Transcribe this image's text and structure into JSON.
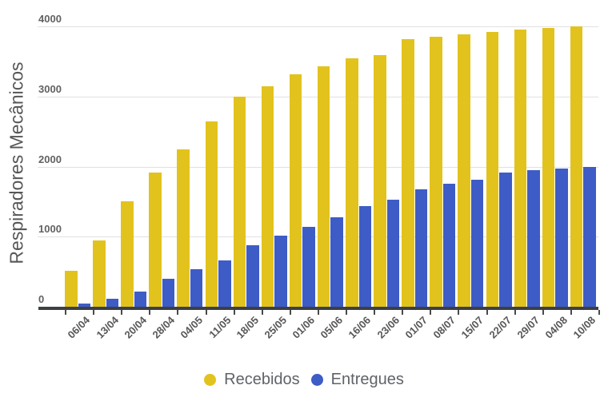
{
  "chart_data": {
    "type": "bar",
    "title": "",
    "xlabel": "",
    "ylabel": "Respiradores Mecânicos",
    "ylim": [
      0,
      4000
    ],
    "yticks": [
      0,
      1000,
      2000,
      3000,
      4000
    ],
    "grid": true,
    "legend_position": "bottom",
    "categories": [
      "06/04",
      "13/04",
      "20/04",
      "28/04",
      "04/05",
      "11/05",
      "18/05",
      "25/05",
      "01/06",
      "05/06",
      "16/06",
      "23/06",
      "01/07",
      "08/07",
      "15/07",
      "22/07",
      "29/07",
      "04/08",
      "10/08"
    ],
    "series": [
      {
        "name": "Recebidos",
        "color": "#e2c31d",
        "values": [
          510,
          950,
          1500,
          1920,
          2240,
          2640,
          3000,
          3150,
          3320,
          3430,
          3540,
          3595,
          3820,
          3855,
          3890,
          3925,
          3960,
          3980,
          4000
        ]
      },
      {
        "name": "Entregues",
        "color": "#3e5cc6",
        "values": [
          45,
          115,
          220,
          400,
          535,
          660,
          875,
          1010,
          1140,
          1275,
          1435,
          1530,
          1670,
          1750,
          1815,
          1910,
          1950,
          1975,
          1995
        ]
      }
    ]
  },
  "axis_style": {
    "gridline_color": "#e1e1e1",
    "axis_line_color": "#3c4043",
    "tick_label_color": "#616161",
    "x_label_color": "#575757"
  }
}
